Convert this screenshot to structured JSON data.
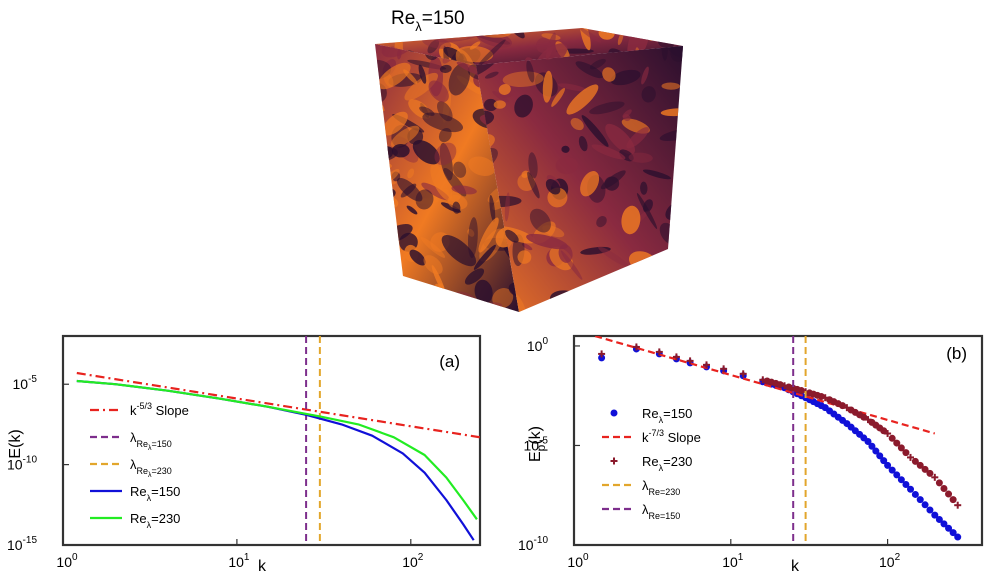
{
  "colors": {
    "red": "#e8231f",
    "dark_red": "#8b1a2c",
    "purple": "#7d2e8c",
    "orange": "#e2a62c",
    "blue": "#1010d8",
    "green": "#22ec22",
    "cube_dark": "#2a0f2e",
    "cube_mid": "#8a2a40",
    "cube_bright": "#f07a22"
  },
  "cube": {
    "label_re": "Re",
    "label_sub": "λ",
    "label_val": "=150"
  },
  "chart_data": [
    {
      "type": "line",
      "panel": "(a)",
      "xlabel": "k",
      "ylabel": "E(k)",
      "xscale": "log",
      "yscale": "log",
      "xlim": [
        1,
        250
      ],
      "ylim_exp": [
        -15,
        -2
      ],
      "x_ticks": [
        {
          "base": "10",
          "exp": "0",
          "value": 1
        },
        {
          "base": "10",
          "exp": "1",
          "value": 10
        },
        {
          "base": "10",
          "exp": "2",
          "value": 100
        }
      ],
      "y_ticks": [
        {
          "base": "10",
          "exp": "-5",
          "value_exp": -5
        },
        {
          "base": "10",
          "exp": "-10",
          "value_exp": -10
        },
        {
          "base": "10",
          "exp": "-15",
          "value_exp": -15
        }
      ],
      "series": [
        {
          "name": "k-5/3 Slope",
          "legend_main": "k",
          "legend_sup": "-5/3",
          "legend_tail": " Slope",
          "style": "dashdot",
          "color_key": "red",
          "x": [
            1.2,
            250
          ],
          "y_exp": [
            -4.3,
            -8.3
          ]
        },
        {
          "name": "λRe_λ=150",
          "legend_main": "λ",
          "legend_sub": "Re",
          "legend_subsub": "λ",
          "legend_subtail": "=150",
          "style": "vline",
          "color_key": "purple",
          "x": [
            25
          ]
        },
        {
          "name": "λRe_λ=230",
          "legend_main": "λ",
          "legend_sub": "Re",
          "legend_subsub": "λ",
          "legend_subtail": "=230",
          "style": "vline",
          "color_key": "orange",
          "x": [
            30
          ]
        },
        {
          "name": "Re_λ=150",
          "legend_main": "Re",
          "legend_sub": "λ",
          "legend_tail": "=150",
          "style": "solid",
          "color_key": "blue",
          "x": [
            1.2,
            2,
            4,
            8,
            15,
            25,
            40,
            60,
            90,
            120,
            160,
            200,
            230
          ],
          "y_exp": [
            -4.8,
            -5.0,
            -5.4,
            -5.9,
            -6.4,
            -6.9,
            -7.5,
            -8.2,
            -9.3,
            -10.5,
            -12.2,
            -13.7,
            -14.7
          ]
        },
        {
          "name": "Re_λ=230",
          "legend_main": "Re",
          "legend_sub": "λ",
          "legend_tail": "=230",
          "style": "solid",
          "color_key": "green",
          "x": [
            1.2,
            2,
            4,
            8,
            15,
            30,
            50,
            80,
            120,
            160,
            200,
            240
          ],
          "y_exp": [
            -4.8,
            -5.0,
            -5.4,
            -5.9,
            -6.4,
            -7.0,
            -7.5,
            -8.3,
            -9.4,
            -10.8,
            -12.2,
            -13.4
          ]
        }
      ]
    },
    {
      "type": "scatter",
      "panel": "(b)",
      "xlabel": "k",
      "ylabel_main": "E",
      "ylabel_sub": "p",
      "ylabel_tail": "(k)",
      "xscale": "log",
      "yscale": "log",
      "xlim": [
        1,
        400
      ],
      "ylim_exp": [
        -10,
        0.5
      ],
      "x_ticks": [
        {
          "base": "10",
          "exp": "0",
          "value": 1
        },
        {
          "base": "10",
          "exp": "1",
          "value": 10
        },
        {
          "base": "10",
          "exp": "2",
          "value": 100
        }
      ],
      "y_ticks": [
        {
          "base": "10",
          "exp": "0",
          "value_exp": 0
        },
        {
          "base": "10",
          "exp": "-5",
          "value_exp": -5
        },
        {
          "base": "10",
          "exp": "-10",
          "value_exp": -10
        }
      ],
      "series": [
        {
          "name": "Re_λ=150",
          "legend_main": "Re",
          "legend_sub": "λ",
          "legend_tail": "=150",
          "style": "dot",
          "color_key": "blue",
          "x": [
            1.5,
            2.5,
            3.5,
            4.5,
            5.5,
            7,
            9,
            12,
            16,
            22,
            30,
            40,
            55,
            75,
            100,
            140,
            200,
            280
          ],
          "y_exp": [
            -0.6,
            -0.15,
            -0.4,
            -0.65,
            -0.85,
            -1.05,
            -1.25,
            -1.5,
            -1.8,
            -2.1,
            -2.6,
            -3.1,
            -3.9,
            -4.8,
            -6.0,
            -7.2,
            -8.5,
            -9.6
          ]
        },
        {
          "name": "k-7/3 Slope",
          "legend_main": "k",
          "legend_sup": "-7/3",
          "legend_tail": " Slope",
          "style": "dashed",
          "color_key": "red",
          "x": [
            1,
            200
          ],
          "y_exp": [
            0.8,
            -4.4
          ]
        },
        {
          "name": "Re_λ=230",
          "legend_main": "Re",
          "legend_sub": "λ",
          "legend_tail": "=230",
          "style": "plus",
          "color_key": "dark_red",
          "x": [
            1.5,
            2.5,
            3.5,
            4.5,
            5.5,
            7,
            9,
            12,
            16,
            22,
            30,
            40,
            55,
            75,
            100,
            140,
            200,
            280
          ],
          "y_exp": [
            -0.4,
            -0.05,
            -0.3,
            -0.55,
            -0.75,
            -0.95,
            -1.15,
            -1.4,
            -1.7,
            -2.0,
            -2.3,
            -2.6,
            -3.1,
            -3.7,
            -4.4,
            -5.6,
            -6.6,
            -8.0
          ]
        },
        {
          "name": "λRe=230",
          "legend_main": "λ",
          "legend_sub": "Re=230",
          "style": "vline",
          "color_key": "orange",
          "x": [
            30
          ]
        },
        {
          "name": "λRe=150",
          "legend_main": "λ",
          "legend_sub": "Re=150",
          "style": "vline",
          "color_key": "purple",
          "x": [
            25
          ]
        }
      ]
    }
  ]
}
